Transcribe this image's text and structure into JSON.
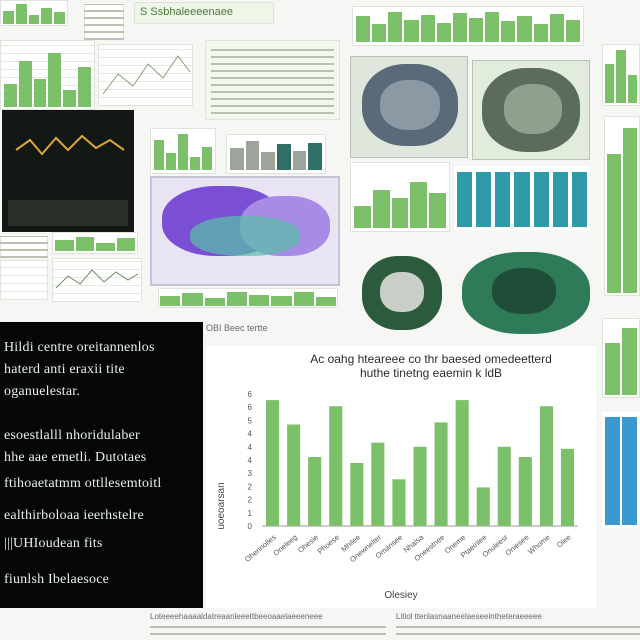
{
  "collage": {
    "description_free": true,
    "accent_color": "#7cc06a",
    "dark_panel_color": "#050706",
    "teal_color": "#2f9aa8",
    "purple_color": "#7a4fd6"
  },
  "dark_panel": {
    "lines": [
      "Hildi centre oreitannenlos",
      "haterd anti eraxii tite",
      "oganuelestar.",
      "esoestlalll nhoridulaber",
      "hhe aae emetli. Dutotaes",
      "ftihoaetatmm ottllesemtoitl",
      "ealthirboloaa ieerhstelre",
      "|||UHIoudean fits",
      "fiunlsh Ibelaesoce"
    ]
  },
  "chart_data": {
    "type": "bar",
    "title": "Ac oahg hteareee co thr baesed omedeetterd",
    "subtitle": "huthe tinetng eaemin k ldB",
    "xlabel": "Olesiey",
    "ylabel": "uoeoarsan",
    "ylim": [
      0,
      65
    ],
    "yticks": [
      "0",
      "1",
      "2",
      "2",
      "3",
      "4",
      "4",
      "4",
      "5",
      "6",
      "6"
    ],
    "categories": [
      "Ohennolles",
      "Oneleeg",
      "Ohesie",
      "Phoese",
      "Mhilee",
      "Onewnelter",
      "Omansee",
      "Nhalsa",
      "Oneestnee",
      "Oneme",
      "Ptaeinlee",
      "Onuleesr",
      "Oniesee",
      "Whome",
      "Olee"
    ],
    "values": [
      62,
      50,
      34,
      59,
      31,
      41,
      23,
      39,
      51,
      62,
      19,
      39,
      34,
      59,
      38
    ]
  },
  "footer": {
    "caption_left": "Loteeeehaaaaldatreaanleeettbeeoaaelaeeeneee",
    "caption_right": "Litiol ttenlasnaaneelaeseeintheteraeeeee"
  },
  "top_labels": {
    "left_header": "S Ssbhaleeeenaee",
    "small_caption": "OBI Beec tertte"
  }
}
